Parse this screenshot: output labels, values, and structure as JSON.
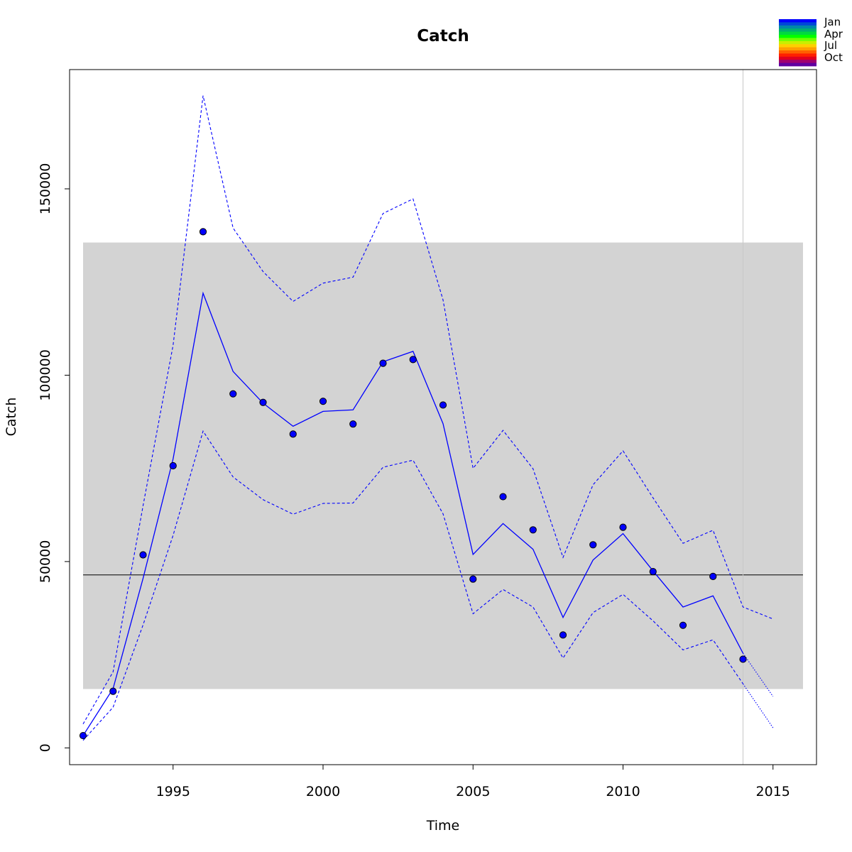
{
  "chart_data": {
    "type": "line",
    "title": "Catch",
    "xlabel": "Time",
    "ylabel": "Catch",
    "xlim": [
      1991.55,
      2016.45
    ],
    "ylim": [
      -4500,
      182000
    ],
    "x_ticks": [
      1995,
      2000,
      2005,
      2010,
      2015
    ],
    "x_tick_labels": [
      "1995",
      "2000",
      "2005",
      "2010",
      "2015"
    ],
    "y_ticks": [
      0,
      50000,
      100000,
      150000
    ],
    "y_tick_labels": [
      "0",
      "50000",
      "100000",
      "150000"
    ],
    "grid": false,
    "band": {
      "x_from": 1992,
      "x_to": 2016,
      "y_from": 15800,
      "y_to": 135600,
      "color": "#d3d3d3"
    },
    "hline": {
      "y": 46400,
      "color": "#000000"
    },
    "vline": {
      "x": 2014,
      "color": "#c8c8c8"
    },
    "observed": {
      "x": [
        1992,
        1993,
        1994,
        1995,
        1996,
        1997,
        1998,
        1999,
        2000,
        2001,
        2002,
        2003,
        2004,
        2005,
        2006,
        2007,
        2008,
        2009,
        2010,
        2011,
        2012,
        2013,
        2014
      ],
      "y": [
        3300,
        15200,
        51800,
        75700,
        138500,
        95000,
        92700,
        84200,
        93000,
        86900,
        103200,
        104200,
        92000,
        45300,
        67400,
        58500,
        30300,
        54500,
        59200,
        47300,
        32900,
        46000,
        23800
      ],
      "color": "#0000ff"
    },
    "series": [
      {
        "role": "fit",
        "style": "solid",
        "color": "#0000ff",
        "x": [
          1992,
          1993,
          1994,
          1995,
          1996,
          1997,
          1998,
          1999,
          2000,
          2001,
          2002,
          2003,
          2004,
          2005,
          2006,
          2007,
          2008,
          2009,
          2010,
          2011,
          2012,
          2013,
          2014
        ],
        "values": [
          3300,
          15900,
          45500,
          77500,
          122000,
          101000,
          92500,
          86300,
          90300,
          90700,
          103600,
          106400,
          87000,
          51900,
          60200,
          53300,
          35000,
          50400,
          57500,
          47500,
          37800,
          40800,
          25400
        ]
      },
      {
        "role": "upper",
        "style": "dashed",
        "color": "#0000ff",
        "x": [
          1992,
          1993,
          1994,
          1995,
          1996,
          1997,
          1998,
          1999,
          2000,
          2001,
          2002,
          2003,
          2004,
          2005,
          2006,
          2007,
          2008,
          2009,
          2010,
          2011,
          2012,
          2013,
          2014,
          2015
        ],
        "values": [
          6400,
          20400,
          65000,
          108000,
          175000,
          139500,
          127800,
          119800,
          124700,
          126300,
          143400,
          147300,
          120200,
          75000,
          85200,
          74900,
          51100,
          70600,
          79700,
          67100,
          54900,
          58400,
          37800,
          34600
        ]
      },
      {
        "role": "lower",
        "style": "dashed",
        "color": "#0000ff",
        "x": [
          1992,
          1993,
          1994,
          1995,
          1996,
          1997,
          1998,
          1999,
          2000,
          2001,
          2002,
          2003,
          2004,
          2005,
          2006,
          2007,
          2008,
          2009,
          2010,
          2011,
          2012,
          2013,
          2014
        ],
        "values": [
          2000,
          10900,
          33000,
          57000,
          85000,
          72700,
          66600,
          62700,
          65600,
          65700,
          75300,
          77200,
          62800,
          36000,
          42500,
          37800,
          24100,
          36300,
          41200,
          34100,
          26300,
          29000,
          17200
        ]
      },
      {
        "role": "forecast",
        "style": "dotted",
        "color": "#0000ff",
        "x": [
          2014,
          2015
        ],
        "values": [
          25400,
          13800
        ]
      },
      {
        "role": "forecast-lower",
        "style": "dotted",
        "color": "#0000ff",
        "x": [
          2014,
          2015
        ],
        "values": [
          17200,
          5400
        ]
      }
    ],
    "legend": {
      "position": "top-right",
      "entries": [
        "Jan",
        "Apr",
        "Jul",
        "Oct"
      ],
      "swatch_colors": [
        "#0000ff",
        "#0048d8",
        "#0088a8",
        "#00b070",
        "#00d840",
        "#00ff00",
        "#70ff00",
        "#c8f000",
        "#ffd000",
        "#ffa000",
        "#ff6000",
        "#ff2000",
        "#e00020",
        "#a00070",
        "#6000a0"
      ]
    }
  }
}
